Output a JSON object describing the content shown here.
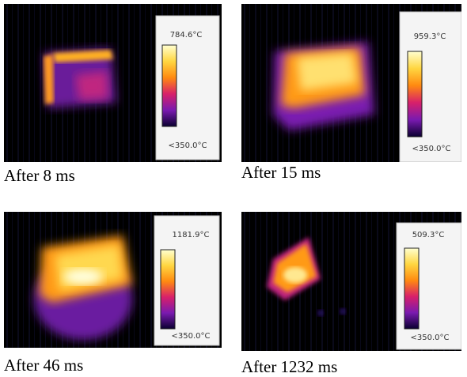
{
  "panels": [
    {
      "caption": "After 8 ms",
      "max_label": "784.6°C",
      "min_label": "<350.0°C"
    },
    {
      "caption": "After 15 ms",
      "max_label": "959.3°C",
      "min_label": "<350.0°C"
    },
    {
      "caption": "After 46 ms",
      "max_label": "1181.9°C",
      "min_label": "<350.0°C"
    },
    {
      "caption": "After 1232 ms",
      "max_label": "509.3°C",
      "min_label": "<350.0°C"
    }
  ]
}
